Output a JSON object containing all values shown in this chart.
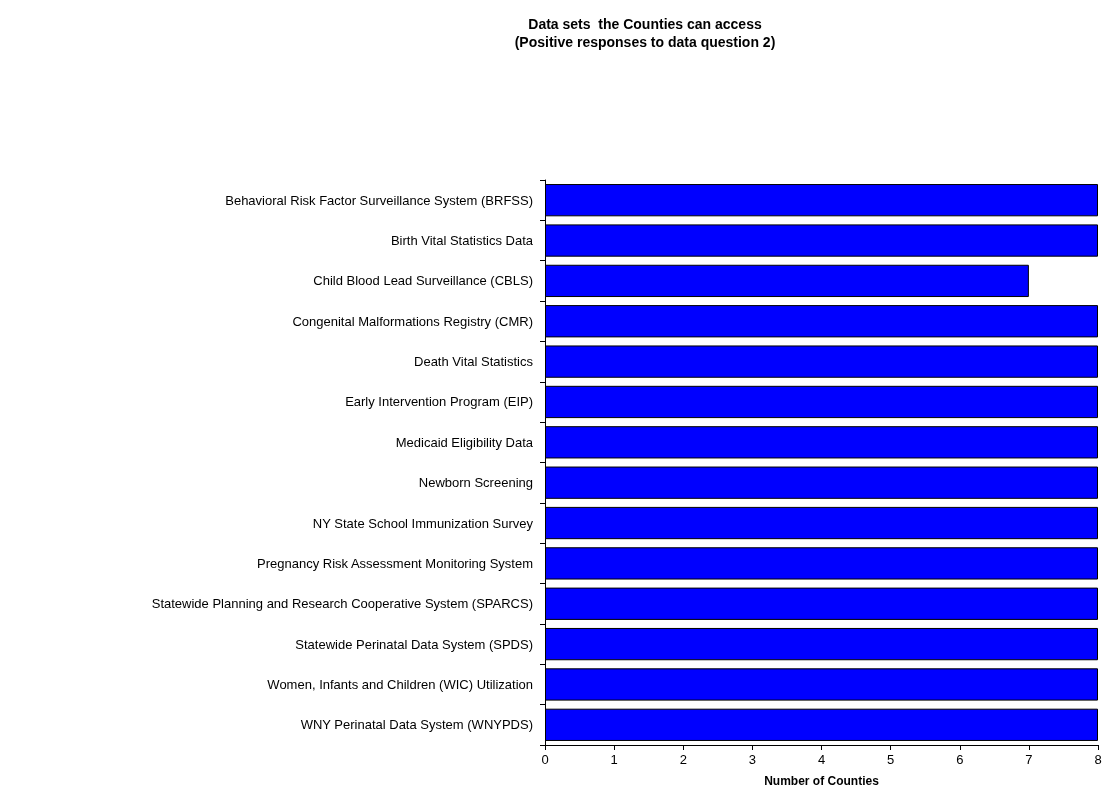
{
  "chart_data": {
    "type": "bar",
    "orientation": "horizontal",
    "title": "Data sets  the Counties can access",
    "subtitle": "(Positive responses to data question 2)",
    "xlabel": "Number of Counties",
    "categories": [
      "Behavioral Risk Factor Surveillance System (BRFSS)",
      "Birth Vital Statistics Data",
      "Child Blood Lead Surveillance (CBLS)",
      "Congenital Malformations Registry (CMR)",
      "Death Vital Statistics",
      "Early Intervention Program (EIP)",
      "Medicaid Eligibility Data",
      "Newborn Screening",
      "NY State School Immunization Survey",
      "Pregnancy Risk Assessment Monitoring System",
      "Statewide Planning and Research Cooperative System (SPARCS)",
      "Statewide Perinatal Data System (SPDS)",
      "Women, Infants and Children (WIC) Utilization",
      "WNY Perinatal Data System (WNYPDS)"
    ],
    "values": [
      8,
      8,
      7,
      8,
      8,
      8,
      8,
      8,
      8,
      8,
      8,
      8,
      8,
      8
    ],
    "color": "#0000ff",
    "xlim": [
      0,
      8
    ],
    "xticks": [
      0,
      1,
      2,
      3,
      4,
      5,
      6,
      7,
      8
    ],
    "grid": false
  }
}
